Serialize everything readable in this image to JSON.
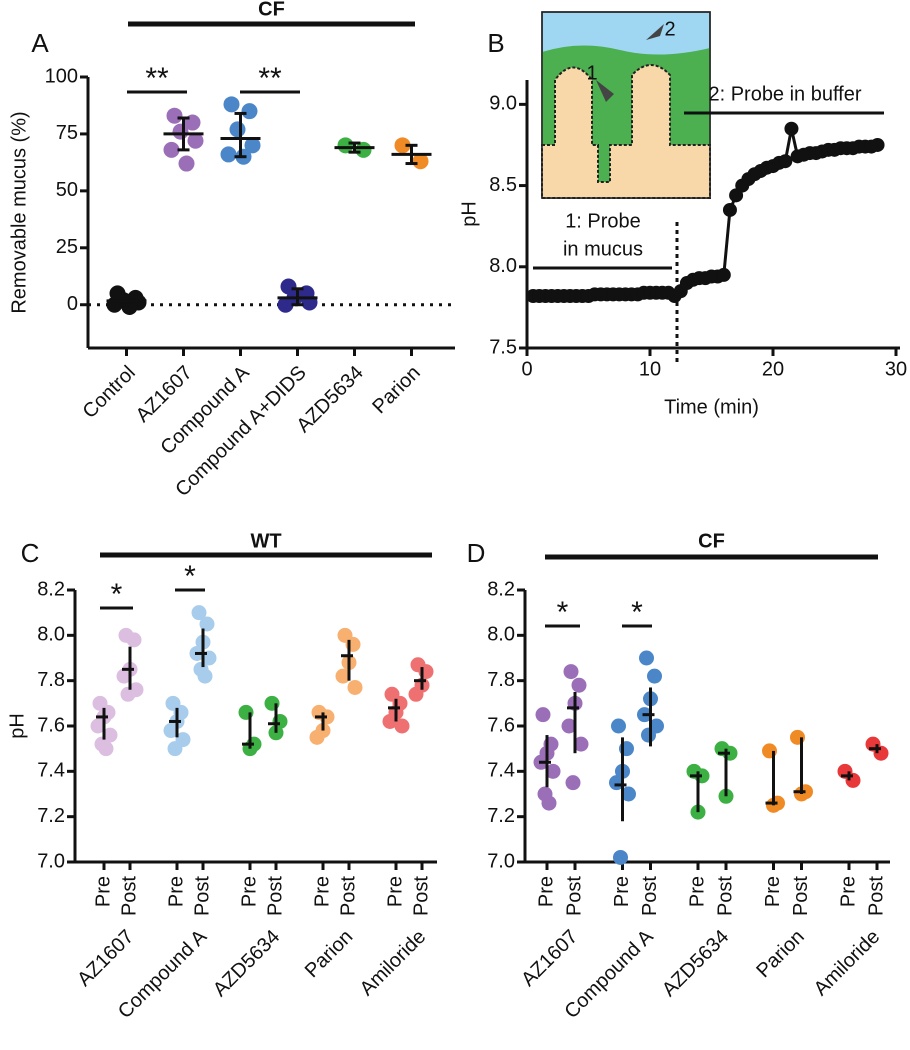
{
  "chart_data": [
    {
      "type": "dot",
      "panel": "A",
      "title": "CF",
      "ylabel": "Removable mucus (%)",
      "categories": [
        "Control",
        "AZ1607",
        "Compound A",
        "Compound A+DIDS",
        "AZD5634",
        "Parion"
      ],
      "groups": [
        {
          "color": "#111111",
          "values": [
            5,
            3,
            2,
            1,
            0,
            -1
          ],
          "mean": 1.7,
          "range": [
            0,
            4
          ]
        },
        {
          "color": "#9b6fb8",
          "values": [
            83,
            80,
            76,
            72,
            68,
            62
          ],
          "mean": 75,
          "range": [
            68,
            82
          ]
        },
        {
          "color": "#4a86c8",
          "values": [
            88,
            85,
            77,
            70,
            66,
            65
          ],
          "mean": 73,
          "range": [
            65,
            84
          ]
        },
        {
          "color": "#2e2a8c",
          "values": [
            8,
            5,
            3,
            1,
            0
          ],
          "mean": 3,
          "range": [
            0,
            7
          ]
        },
        {
          "color": "#3cb043",
          "values": [
            70,
            68
          ],
          "mean": 69,
          "range": [
            67,
            71
          ]
        },
        {
          "color": "#f08a24",
          "values": [
            70,
            63
          ],
          "mean": 66,
          "range": [
            62,
            70
          ]
        }
      ],
      "ylim": [
        -19,
        100
      ],
      "yticks": [
        0,
        25,
        50,
        75,
        100
      ],
      "annotations": [
        "**",
        "**"
      ],
      "zero_line": true
    },
    {
      "type": "line",
      "panel": "B",
      "xlabel": "Time (min)",
      "ylabel": "pH",
      "color": "#111111",
      "x": [
        0.5,
        1,
        1.5,
        2,
        2.5,
        3,
        3.5,
        4,
        4.5,
        5,
        5.5,
        6,
        6.5,
        7,
        7.5,
        8,
        8.5,
        9,
        9.5,
        10,
        10.5,
        11,
        11.5,
        12,
        12.5,
        13,
        13.5,
        14,
        14.5,
        15,
        15.5,
        16,
        16.5,
        17,
        17.5,
        18,
        18.5,
        19,
        19.5,
        20,
        20.5,
        21,
        21.5,
        22,
        22.5,
        23,
        23.5,
        24,
        24.5,
        25,
        25.5,
        26,
        26.5,
        27,
        27.5,
        28,
        28.5
      ],
      "values": [
        7.82,
        7.82,
        7.82,
        7.82,
        7.82,
        7.82,
        7.82,
        7.82,
        7.82,
        7.82,
        7.83,
        7.83,
        7.83,
        7.83,
        7.83,
        7.83,
        7.83,
        7.83,
        7.84,
        7.84,
        7.84,
        7.84,
        7.84,
        7.82,
        7.85,
        7.9,
        7.92,
        7.93,
        7.93,
        7.94,
        7.94,
        7.95,
        8.35,
        8.44,
        8.5,
        8.54,
        8.57,
        8.59,
        8.61,
        8.62,
        8.64,
        8.65,
        8.85,
        8.68,
        8.69,
        8.7,
        8.7,
        8.71,
        8.72,
        8.72,
        8.73,
        8.73,
        8.73,
        8.74,
        8.74,
        8.74,
        8.75
      ],
      "xlim": [
        0,
        30
      ],
      "xticks": [
        0,
        10,
        20,
        30
      ],
      "ylim": [
        7.5,
        9.15
      ],
      "yticks": [
        7.5,
        {
          "value": 8,
          "label": "8.0"
        },
        8.5,
        {
          "value": 9,
          "label": "9.0"
        }
      ],
      "annotations": [
        "1: Probe",
        "in mucus",
        "2: Probe in buffer"
      ],
      "inset_labels": [
        "1",
        "2"
      ]
    },
    {
      "type": "paired-dot",
      "panel": "C",
      "title": "WT",
      "ylabel": "pH",
      "conditions": [
        "Pre",
        "Post"
      ],
      "groups": [
        {
          "name": "AZ1607",
          "color": "#dcbfe0",
          "pre": {
            "values": [
              7.7,
              7.66,
              7.64,
              7.6,
              7.56,
              7.52,
              7.5
            ],
            "median": 7.64,
            "range": [
              7.54,
              7.68
            ]
          },
          "post": {
            "values": [
              8.0,
              7.98,
              7.85,
              7.82,
              7.76,
              7.74
            ],
            "median": 7.85,
            "range": [
              7.76,
              7.95
            ]
          }
        },
        {
          "name": "Compound A",
          "color": "#a8ccec",
          "pre": {
            "values": [
              7.7,
              7.66,
              7.62,
              7.58,
              7.54,
              7.5
            ],
            "median": 7.62,
            "range": [
              7.55,
              7.68
            ]
          },
          "post": {
            "values": [
              8.1,
              8.05,
              7.97,
              7.92,
              7.9,
              7.85,
              7.82
            ],
            "median": 7.92,
            "range": [
              7.86,
              8.03
            ]
          }
        },
        {
          "name": "AZD5634",
          "color": "#3cb043",
          "pre": {
            "values": [
              7.66,
              7.52,
              7.5
            ],
            "median": 7.52,
            "range": [
              7.5,
              7.66
            ]
          },
          "post": {
            "values": [
              7.7,
              7.62,
              7.57
            ],
            "median": 7.61,
            "range": [
              7.57,
              7.7
            ]
          }
        },
        {
          "name": "Parion",
          "color": "#f8b070",
          "pre": {
            "values": [
              7.66,
              7.64,
              7.58,
              7.55
            ],
            "median": 7.64,
            "range": [
              7.58,
              7.66
            ]
          },
          "post": {
            "values": [
              8.0,
              7.96,
              7.88,
              7.82,
              7.77
            ],
            "median": 7.91,
            "range": [
              7.8,
              7.98
            ]
          }
        },
        {
          "name": "Amiloride",
          "color": "#ee7070",
          "pre": {
            "values": [
              7.74,
              7.7,
              7.66,
              7.62,
              7.6
            ],
            "median": 7.68,
            "range": [
              7.62,
              7.72
            ]
          },
          "post": {
            "values": [
              7.87,
              7.84,
              7.78,
              7.74
            ],
            "median": 7.8,
            "range": [
              7.76,
              7.86
            ]
          }
        }
      ],
      "ylim": [
        7,
        8.2
      ],
      "yticks": [
        {
          "value": 7,
          "label": "7.0"
        },
        7.2,
        7.4,
        7.6,
        7.8,
        {
          "value": 8,
          "label": "8.0"
        },
        8.2
      ],
      "annotations": [
        "*",
        "*"
      ]
    },
    {
      "type": "paired-dot",
      "panel": "D",
      "title": "CF",
      "conditions": [
        "Pre",
        "Post"
      ],
      "groups": [
        {
          "name": "AZ1607",
          "color": "#9b6fb8",
          "pre": {
            "values": [
              7.65,
              7.52,
              7.48,
              7.44,
              7.4,
              7.3,
              7.26
            ],
            "median": 7.44,
            "range": [
              7.33,
              7.56
            ]
          },
          "post": {
            "values": [
              7.84,
              7.78,
              7.7,
              7.6,
              7.52,
              7.35
            ],
            "median": 7.68,
            "range": [
              7.48,
              7.75
            ]
          }
        },
        {
          "name": "Compound A",
          "color": "#4a86c8",
          "pre": {
            "values": [
              7.6,
              7.5,
              7.4,
              7.35,
              7.3,
              7.02
            ],
            "median": 7.34,
            "range": [
              7.18,
              7.55
            ]
          },
          "post": {
            "values": [
              7.9,
              7.82,
              7.72,
              7.65,
              7.6,
              7.56
            ],
            "median": 7.65,
            "range": [
              7.51,
              7.77
            ]
          }
        },
        {
          "name": "AZD5634",
          "color": "#3cb043",
          "pre": {
            "values": [
              7.4,
              7.38,
              7.22
            ],
            "median": 7.38,
            "range": [
              7.22,
              7.4
            ]
          },
          "post": {
            "values": [
              7.5,
              7.48,
              7.29
            ],
            "median": 7.48,
            "range": [
              7.29,
              7.5
            ]
          }
        },
        {
          "name": "Parion",
          "color": "#f08a24",
          "pre": {
            "values": [
              7.49,
              7.26,
              7.25
            ],
            "median": 7.26,
            "range": [
              7.25,
              7.49
            ]
          },
          "post": {
            "values": [
              7.55,
              7.31,
              7.3
            ],
            "median": 7.31,
            "range": [
              7.3,
              7.55
            ]
          }
        },
        {
          "name": "Amiloride",
          "color": "#e8383a",
          "pre": {
            "values": [
              7.4,
              7.36
            ],
            "median": 7.38,
            "range": [
              7.36,
              7.4
            ]
          },
          "post": {
            "values": [
              7.52,
              7.48
            ],
            "median": 7.5,
            "range": [
              7.48,
              7.52
            ]
          }
        }
      ],
      "ylim": [
        7,
        8.2
      ],
      "yticks": [
        {
          "value": 7,
          "label": "7.0"
        },
        7.2,
        7.4,
        7.6,
        7.8,
        {
          "value": 8,
          "label": "8.0"
        },
        8.2
      ],
      "annotations": [
        "*",
        "*"
      ]
    }
  ]
}
